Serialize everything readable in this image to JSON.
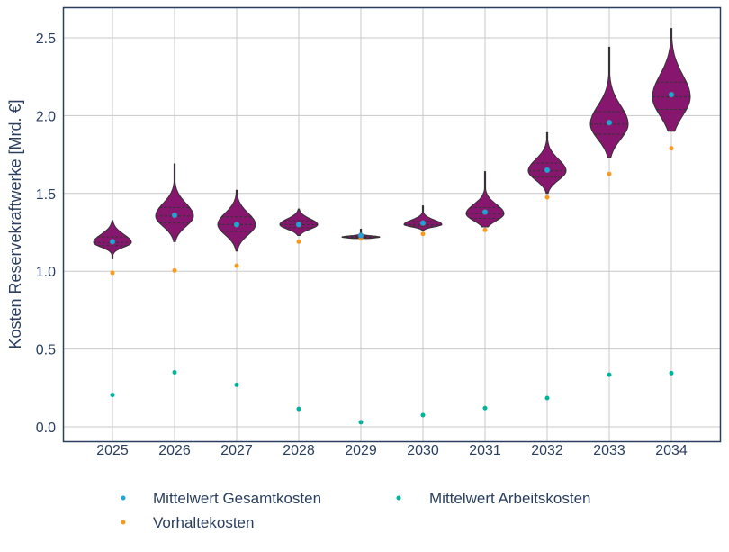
{
  "chart_data": {
    "type": "violin",
    "title": "",
    "xlabel": "",
    "ylabel": "Kosten Reservekraftwerke [Mrd. €]",
    "ylim": [
      -0.1,
      2.7
    ],
    "yticks": [
      0.0,
      0.5,
      1.0,
      1.5,
      2.0,
      2.5
    ],
    "ytick_labels": [
      "0.0",
      "0.5",
      "1.0",
      "1.5",
      "2.0",
      "2.5"
    ],
    "grid": true,
    "legend_position": "bottom",
    "categories": [
      "2025",
      "2026",
      "2027",
      "2028",
      "2029",
      "2030",
      "2031",
      "2032",
      "2033",
      "2034"
    ],
    "violins": [
      {
        "min": 1.08,
        "q1": 1.165,
        "median": 1.185,
        "q3": 1.22,
        "max": 1.325
      },
      {
        "min": 1.19,
        "q1": 1.31,
        "median": 1.355,
        "q3": 1.41,
        "max": 1.69
      },
      {
        "min": 1.13,
        "q1": 1.255,
        "median": 1.3,
        "q3": 1.35,
        "max": 1.52
      },
      {
        "min": 1.23,
        "q1": 1.28,
        "median": 1.3,
        "q3": 1.325,
        "max": 1.4
      },
      {
        "min": 1.21,
        "q1": 1.215,
        "median": 1.22,
        "q3": 1.225,
        "max": 1.27
      },
      {
        "min": 1.26,
        "q1": 1.29,
        "median": 1.3,
        "q3": 1.32,
        "max": 1.42
      },
      {
        "min": 1.285,
        "q1": 1.34,
        "median": 1.37,
        "q3": 1.41,
        "max": 1.64
      },
      {
        "min": 1.5,
        "q1": 1.605,
        "median": 1.645,
        "q3": 1.695,
        "max": 1.89
      },
      {
        "min": 1.73,
        "q1": 1.88,
        "median": 1.945,
        "q3": 2.025,
        "max": 2.44
      },
      {
        "min": 1.9,
        "q1": 2.04,
        "median": 2.12,
        "q3": 2.215,
        "max": 2.56
      }
    ],
    "series": [
      {
        "name": "Mittelwert Gesamtkosten",
        "color": "#1aa6dc",
        "values": [
          1.19,
          1.36,
          1.3,
          1.3,
          1.23,
          1.31,
          1.38,
          1.65,
          1.955,
          2.135
        ]
      },
      {
        "name": "Vorhaltekosten",
        "color": "#f89a1c",
        "values": [
          0.99,
          1.005,
          1.035,
          1.19,
          1.21,
          1.24,
          1.265,
          1.475,
          1.625,
          1.79
        ]
      },
      {
        "name": "Mittelwert Arbeitskosten",
        "color": "#00b39a",
        "values": [
          0.205,
          0.35,
          0.27,
          0.115,
          0.03,
          0.075,
          0.12,
          0.185,
          0.335,
          0.345
        ]
      }
    ],
    "violin_color": "#87166f",
    "violin_line_color": "#333333"
  }
}
